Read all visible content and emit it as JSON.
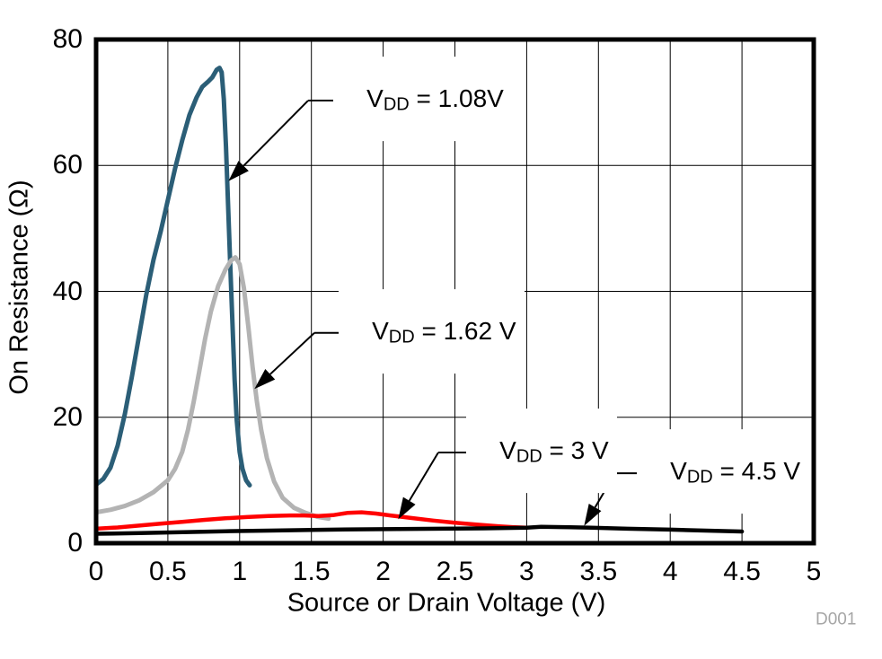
{
  "figure": {
    "x_title": "Source or Drain Voltage (V)",
    "y_title": "On Resistance (Ω)",
    "watermark": "D001",
    "watermark_color": "#A6A6A6"
  },
  "chart_data": {
    "type": "line",
    "title": "",
    "xlabel": "Source or Drain Voltage (V)",
    "ylabel": "On Resistance (Ω)",
    "xlim": [
      0,
      5
    ],
    "ylim": [
      0,
      80
    ],
    "grid": true,
    "legend_position": "none",
    "x_ticks": [
      "0",
      "0.5",
      "1",
      "1.5",
      "2",
      "2.5",
      "3",
      "3.5",
      "4",
      "4.5",
      "5"
    ],
    "x_tick_values": [
      0,
      0.5,
      1,
      1.5,
      2,
      2.5,
      3,
      3.5,
      4,
      4.5,
      5
    ],
    "y_ticks": [
      "0",
      "20",
      "40",
      "60",
      "80"
    ],
    "y_tick_values": [
      0,
      20,
      40,
      60,
      80
    ],
    "grid_color": "#000000",
    "series": [
      {
        "name": "VDD = 1.08V",
        "color": "#2B5E77",
        "width": 5,
        "points": [
          [
            0,
            9.3
          ],
          [
            0.05,
            10.2
          ],
          [
            0.1,
            12
          ],
          [
            0.15,
            15.5
          ],
          [
            0.2,
            20.5
          ],
          [
            0.25,
            26.5
          ],
          [
            0.3,
            33
          ],
          [
            0.35,
            39.5
          ],
          [
            0.4,
            45
          ],
          [
            0.45,
            49.5
          ],
          [
            0.5,
            54.5
          ],
          [
            0.55,
            59.5
          ],
          [
            0.6,
            64
          ],
          [
            0.65,
            68
          ],
          [
            0.7,
            70.8
          ],
          [
            0.74,
            72.5
          ],
          [
            0.78,
            73.3
          ],
          [
            0.81,
            74
          ],
          [
            0.84,
            75.2
          ],
          [
            0.86,
            75.5
          ],
          [
            0.875,
            74.8
          ],
          [
            0.89,
            70.5
          ],
          [
            0.905,
            63
          ],
          [
            0.92,
            53.5
          ],
          [
            0.935,
            44
          ],
          [
            0.95,
            35
          ],
          [
            0.965,
            26
          ],
          [
            0.98,
            19.5
          ],
          [
            1.0,
            14.5
          ],
          [
            1.02,
            11.8
          ],
          [
            1.045,
            10
          ],
          [
            1.07,
            9.2
          ]
        ]
      },
      {
        "name": "VDD = 1.62 V",
        "color": "#B3B3B3",
        "width": 5,
        "points": [
          [
            0,
            4.9
          ],
          [
            0.1,
            5.3
          ],
          [
            0.2,
            5.9
          ],
          [
            0.3,
            6.8
          ],
          [
            0.4,
            8.1
          ],
          [
            0.5,
            10
          ],
          [
            0.55,
            11.8
          ],
          [
            0.6,
            14.5
          ],
          [
            0.64,
            18
          ],
          [
            0.68,
            22.5
          ],
          [
            0.72,
            27.5
          ],
          [
            0.76,
            32.5
          ],
          [
            0.8,
            36.8
          ],
          [
            0.85,
            40.8
          ],
          [
            0.9,
            43.4
          ],
          [
            0.94,
            44.9
          ],
          [
            0.97,
            45.4
          ],
          [
            1.0,
            44.3
          ],
          [
            1.03,
            40.5
          ],
          [
            1.06,
            34.5
          ],
          [
            1.09,
            28
          ],
          [
            1.12,
            22.5
          ],
          [
            1.15,
            18
          ],
          [
            1.19,
            13.5
          ],
          [
            1.24,
            9.8
          ],
          [
            1.3,
            7.2
          ],
          [
            1.38,
            5.6
          ],
          [
            1.46,
            4.8
          ],
          [
            1.54,
            4.2
          ],
          [
            1.62,
            3.9
          ]
        ]
      },
      {
        "name": "VDD = 3 V",
        "color": "#FF0000",
        "width": 4.5,
        "points": [
          [
            0,
            2.3
          ],
          [
            0.15,
            2.5
          ],
          [
            0.3,
            2.8
          ],
          [
            0.45,
            3.1
          ],
          [
            0.6,
            3.4
          ],
          [
            0.75,
            3.7
          ],
          [
            0.9,
            3.95
          ],
          [
            1.05,
            4.15
          ],
          [
            1.2,
            4.3
          ],
          [
            1.35,
            4.4
          ],
          [
            1.45,
            4.4
          ],
          [
            1.55,
            4.3
          ],
          [
            1.65,
            4.45
          ],
          [
            1.75,
            4.8
          ],
          [
            1.85,
            4.9
          ],
          [
            1.95,
            4.7
          ],
          [
            2.05,
            4.4
          ],
          [
            2.2,
            4.0
          ],
          [
            2.35,
            3.6
          ],
          [
            2.5,
            3.25
          ],
          [
            2.65,
            2.95
          ],
          [
            2.8,
            2.7
          ],
          [
            2.9,
            2.55
          ],
          [
            3.0,
            2.45
          ]
        ]
      },
      {
        "name": "VDD = 4.5 V",
        "color": "#000000",
        "width": 4.5,
        "points": [
          [
            0,
            1.5
          ],
          [
            0.3,
            1.6
          ],
          [
            0.6,
            1.75
          ],
          [
            0.9,
            1.9
          ],
          [
            1.2,
            2.0
          ],
          [
            1.5,
            2.1
          ],
          [
            1.8,
            2.2
          ],
          [
            2.1,
            2.25
          ],
          [
            2.4,
            2.3
          ],
          [
            2.7,
            2.35
          ],
          [
            3.0,
            2.45
          ],
          [
            3.1,
            2.6
          ],
          [
            3.25,
            2.55
          ],
          [
            3.45,
            2.45
          ],
          [
            3.7,
            2.3
          ],
          [
            4.0,
            2.15
          ],
          [
            4.25,
            2.0
          ],
          [
            4.5,
            1.85
          ]
        ]
      }
    ],
    "annotations": [
      {
        "text_v": "V",
        "text_sub": "DD",
        "text_rest": " = 1.08V",
        "label_x": 1.69,
        "label_y": 70.3,
        "elbow_x": 1.477,
        "tip_x": 0.922,
        "tip_y": 57.5
      },
      {
        "text_v": "V",
        "text_sub": "DD",
        "text_rest": " = 1.62 V",
        "label_x": 1.727,
        "label_y": 33.4,
        "elbow_x": 1.521,
        "tip_x": 1.103,
        "tip_y": 24.5
      },
      {
        "text_v": "V",
        "text_sub": "DD",
        "text_rest": " = 3 V",
        "label_x": 2.616,
        "label_y": 14.4,
        "elbow_x": 2.384,
        "tip_x": 2.105,
        "tip_y": 3.8
      },
      {
        "text_v": "V",
        "text_sub": "DD",
        "text_rest": " = 4.5 V",
        "label_x": 3.805,
        "label_y": 11.1,
        "elbow_x": 3.617,
        "tip_x": 3.4,
        "tip_y": 2.75
      }
    ]
  }
}
